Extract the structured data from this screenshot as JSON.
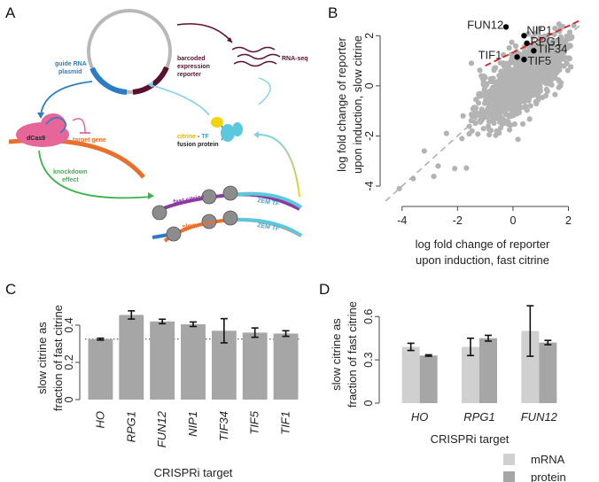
{
  "figure": {
    "panel_labels": [
      "A",
      "B",
      "C",
      "D"
    ]
  },
  "schematic": {
    "guide_rna_plasmid": [
      "guide RNA",
      "plasmid"
    ],
    "barcoded_reporter": [
      "barcoded",
      "expression",
      "reporter"
    ],
    "rna_seq": "RNA-seq",
    "dcas9": "dCas9",
    "target_gene": "target gene",
    "citrine_word": "citrine",
    "tf_word": "TF",
    "fusion_protein": "fusion protein",
    "knockdown": [
      "knockdown",
      "effect"
    ],
    "fast_citrine": "fast citrine",
    "slow_citrine": "slow citrine",
    "zem_tf": "ZEM TF",
    "dash": " - "
  },
  "colors": {
    "bar_gray": "#a6a6a6",
    "mrna_gray": "#d0d0d0",
    "scatter_gray": "#b3b3b3",
    "highlight": "#000000",
    "fit_line": "#e02020",
    "citrine": "#f2d40f",
    "tf_cyan": "#5bc8e0",
    "pink": "#e7669a",
    "blue": "#2b7cc4",
    "maroon": "#5a0f2e",
    "green": "#3bb34a",
    "orange": "#e8702a",
    "purple": "#8a3aa0"
  },
  "chart_data": [
    {
      "id": "B",
      "type": "scatter",
      "xlabel": [
        "log fold change of reporter",
        "upon induction, fast citrine"
      ],
      "ylabel": [
        "log fold change of reporter",
        "upon induction, slow citrine"
      ],
      "xlim": [
        -4.6,
        2.4
      ],
      "ylim": [
        -4.6,
        3.0
      ],
      "xticks": [
        -4,
        -2,
        0,
        2
      ],
      "yticks": [
        -4,
        -2,
        0,
        2
      ],
      "highlighted": [
        {
          "name": "FUN12",
          "x": -0.25,
          "y": 2.35
        },
        {
          "name": "NIP1",
          "x": 0.4,
          "y": 2.0
        },
        {
          "name": "RPG1",
          "x": 0.5,
          "y": 1.7
        },
        {
          "name": "TIF34",
          "x": 0.75,
          "y": 1.4
        },
        {
          "name": "TIF1",
          "x": 0.15,
          "y": 1.15
        },
        {
          "name": "TIF5",
          "x": 0.4,
          "y": 1.05
        }
      ],
      "fit_line": {
        "x": [
          -1.0,
          2.4
        ],
        "y": [
          0.8,
          2.6
        ]
      }
    },
    {
      "id": "C",
      "type": "bar",
      "ylabel": [
        "slow citrine as",
        "fraction of fast citrine"
      ],
      "xlabel": "CRISPRi target",
      "categories": [
        "HO",
        "RPG1",
        "FUN12",
        "NIP1",
        "TIF34",
        "TIF5",
        "TIF1"
      ],
      "values": [
        0.325,
        0.455,
        0.42,
        0.405,
        0.37,
        0.36,
        0.355
      ],
      "errors": [
        0.005,
        0.022,
        0.012,
        0.012,
        0.065,
        0.025,
        0.015
      ],
      "ylim": [
        0,
        0.5
      ],
      "yticks": [
        0.0,
        0.2,
        0.4
      ],
      "reference_line": 0.325
    },
    {
      "id": "D",
      "type": "bar",
      "ylabel": [
        "slow citrine as",
        "fraction of fast citrine"
      ],
      "xlabel": "CRISPRi target",
      "categories": [
        "HO",
        "RPG1",
        "FUN12"
      ],
      "series": [
        {
          "name": "mRNA",
          "values": [
            0.39,
            0.39,
            0.5
          ],
          "errors": [
            0.025,
            0.06,
            0.175
          ]
        },
        {
          "name": "protein",
          "values": [
            0.33,
            0.45,
            0.42
          ],
          "errors": [
            0.005,
            0.02,
            0.015
          ]
        }
      ],
      "ylim": [
        0,
        0.7
      ],
      "yticks": [
        0.0,
        0.3,
        0.6
      ]
    }
  ]
}
